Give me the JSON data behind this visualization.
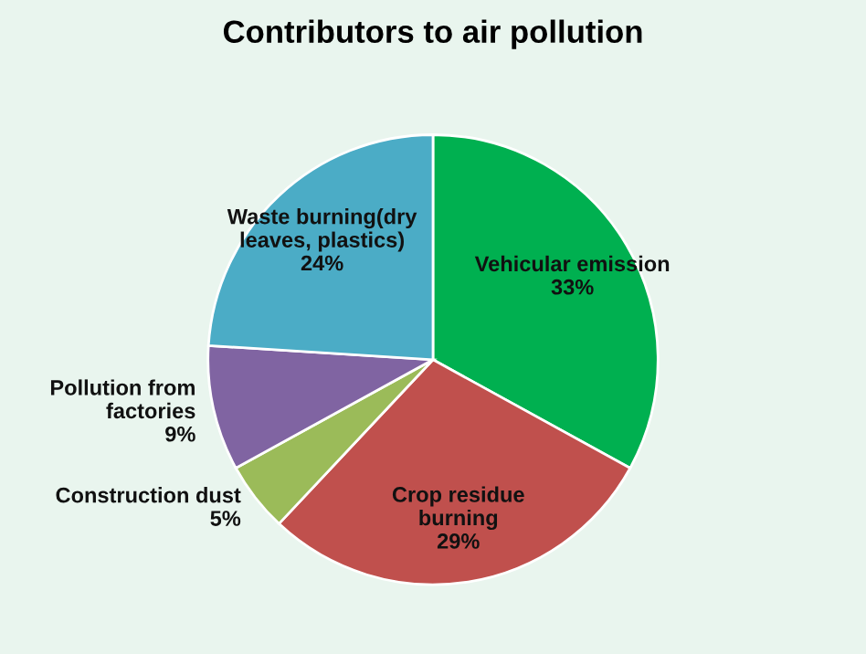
{
  "chart_data": {
    "type": "pie",
    "title": "Contributors to air pollution",
    "categories": [
      "Vehicular emission",
      "Crop residue\nburning",
      "Construction dust",
      "Pollution from\nfactories",
      "Waste burning(dry\nleaves, plastics)"
    ],
    "values": [
      33,
      29,
      5,
      9,
      24
    ],
    "value_labels": [
      "33%",
      "29%",
      "5%",
      "9%",
      "24%"
    ],
    "colors": [
      "#00b050",
      "#c0504d",
      "#9bbb59",
      "#8064a2",
      "#4bacc6"
    ]
  }
}
